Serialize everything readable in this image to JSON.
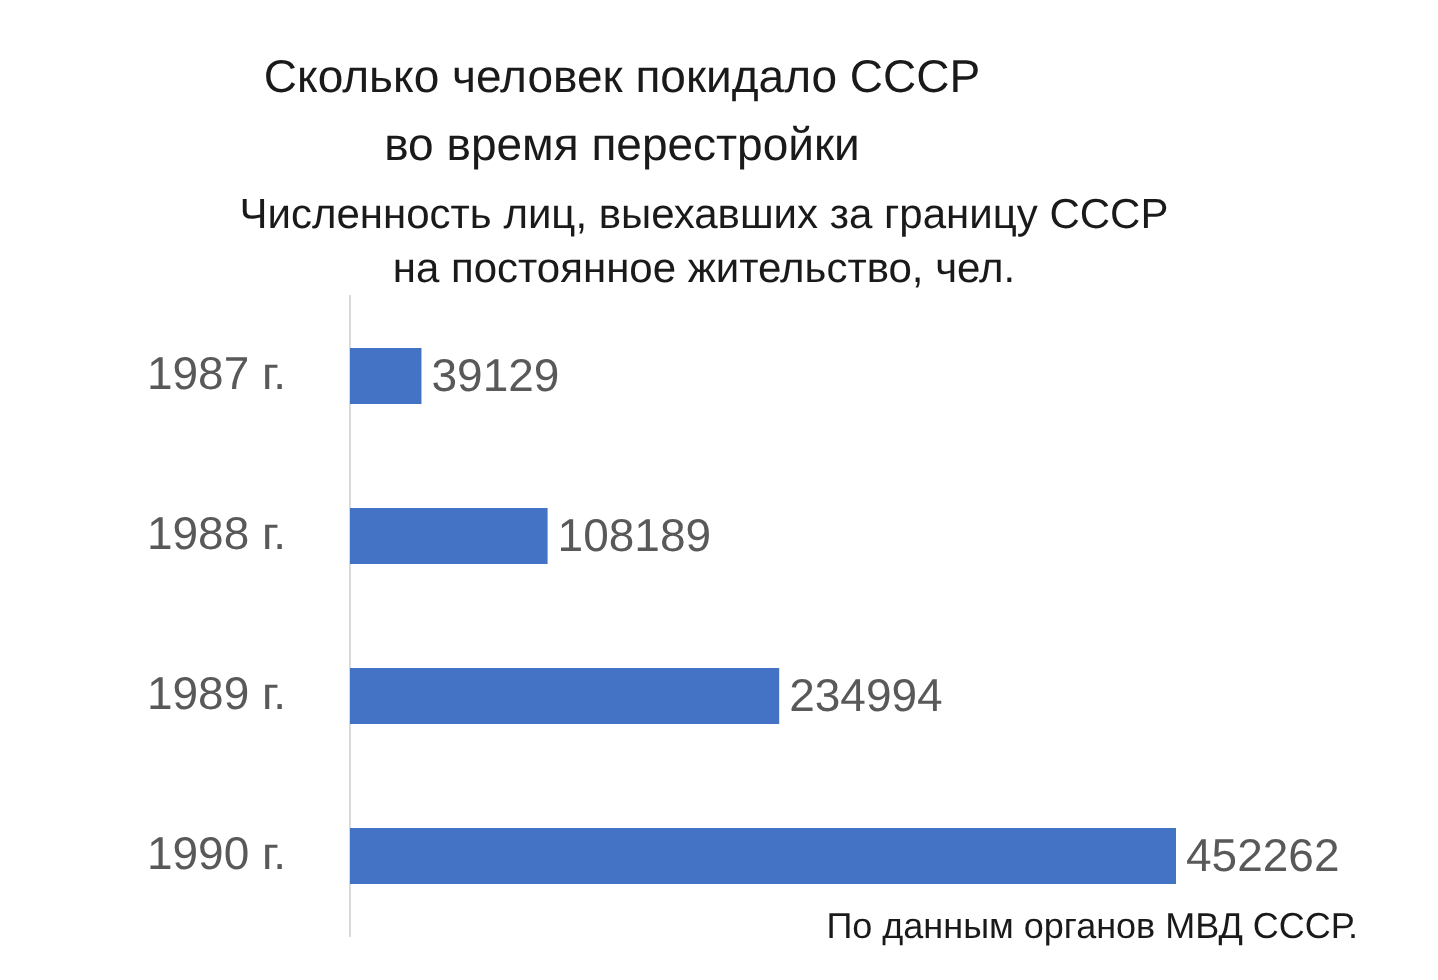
{
  "chart_data": {
    "type": "bar",
    "orientation": "horizontal",
    "title": "Сколько человек покидало СССР во время перестройки",
    "subtitle": "Численность лиц, выехавших за границу СССР на постоянное жительство, чел.",
    "categories": [
      "1987 г.",
      "1988 г.",
      "1989 г.",
      "1990 г."
    ],
    "values": [
      39129,
      108189,
      234994,
      452262
    ],
    "color": "#4472c4",
    "data_labels": true,
    "tick_labels": "y",
    "annotations": [
      "По данным органов МВД СССР."
    ]
  }
}
